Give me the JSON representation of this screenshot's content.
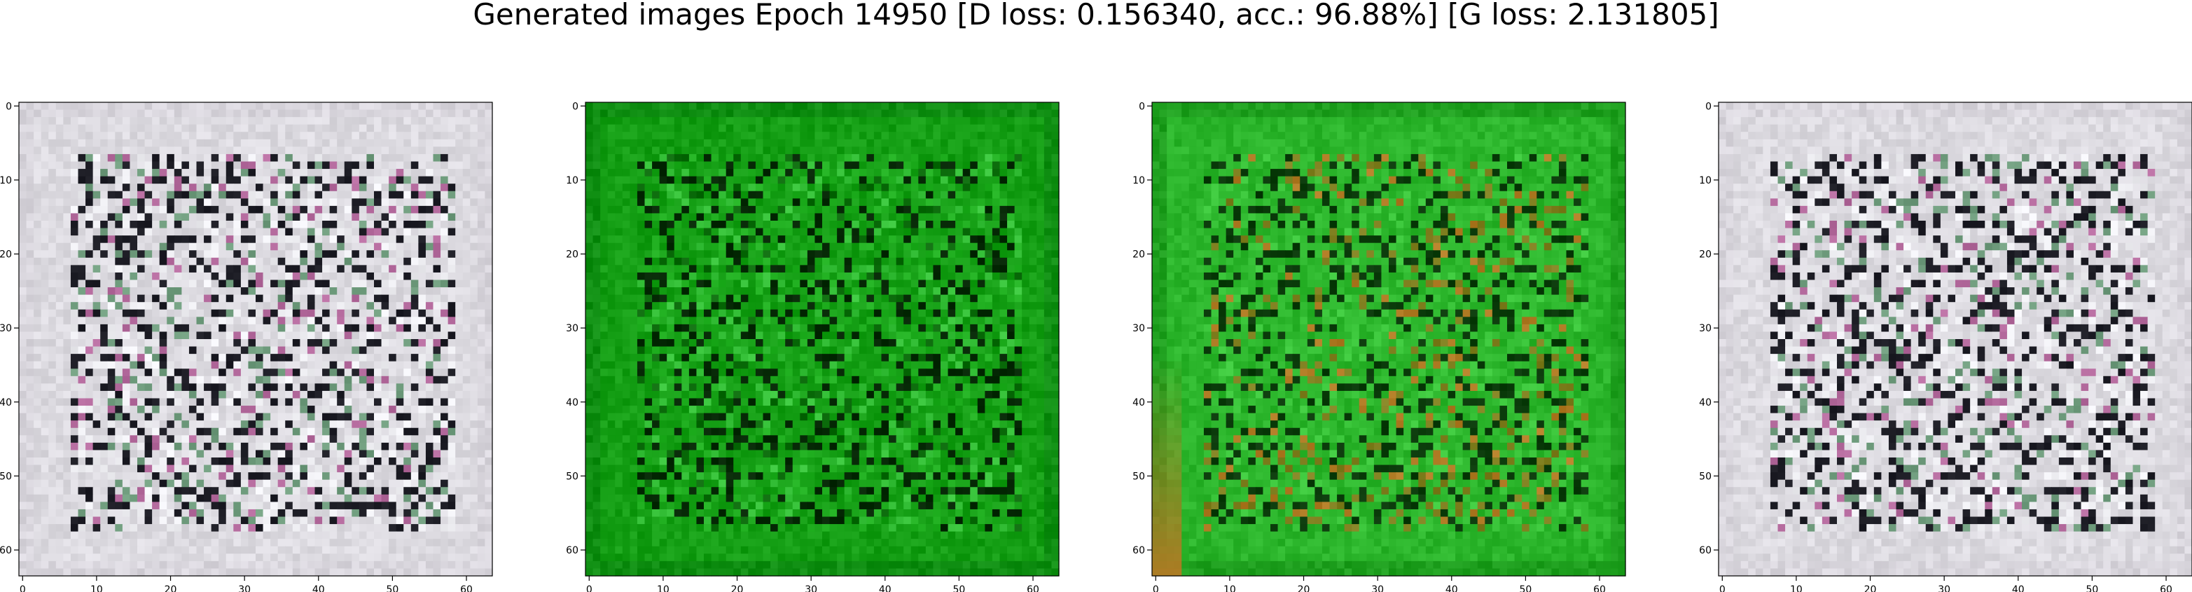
{
  "figure": {
    "suptitle": "Generated images Epoch 14950 [D loss: 0.156340, acc.: 96.88%] [G loss: 2.131805]"
  },
  "chart_data": [
    {
      "type": "heatmap",
      "panel": 1,
      "palette": "whitish",
      "xlim": [
        -0.5,
        63.5
      ],
      "ylim": [
        63.5,
        -0.5
      ],
      "xticks": [
        0,
        10,
        20,
        30,
        40,
        50,
        60
      ],
      "yticks": [
        0,
        10,
        20,
        30,
        40,
        50,
        60
      ],
      "base_color": "#dcdae0",
      "dominant_colors": [
        "#eeeef2",
        "#d9d6dd",
        "#1c1c24",
        "#6f9c7d",
        "#b46a9d",
        "#8fc7d1"
      ]
    },
    {
      "type": "heatmap",
      "panel": 2,
      "palette": "green",
      "xlim": [
        -0.5,
        63.5
      ],
      "ylim": [
        63.5,
        -0.5
      ],
      "xticks": [
        0,
        10,
        20,
        30,
        40,
        50,
        60
      ],
      "yticks": [
        0,
        10,
        20,
        30,
        40,
        50,
        60
      ],
      "base_color": "#149e14",
      "dominant_colors": [
        "#1fae1f",
        "#0f8e12",
        "#052805",
        "#37c23a",
        "#0a6a0a"
      ]
    },
    {
      "type": "heatmap",
      "panel": 3,
      "palette": "green-bright",
      "xlim": [
        -0.5,
        63.5
      ],
      "ylim": [
        63.5,
        -0.5
      ],
      "xticks": [
        0,
        10,
        20,
        30,
        40,
        50,
        60
      ],
      "yticks": [
        0,
        10,
        20,
        30,
        40,
        50,
        60
      ],
      "base_color": "#2bb52b",
      "dominant_colors": [
        "#3ac53a",
        "#1e9f1e",
        "#0a3a0a",
        "#7f7f1f",
        "#b07b24"
      ]
    },
    {
      "type": "heatmap",
      "panel": 4,
      "palette": "whitish",
      "xlim": [
        -0.5,
        63.5
      ],
      "ylim": [
        63.5,
        -0.5
      ],
      "xticks": [
        0,
        10,
        20,
        30,
        40,
        50,
        60
      ],
      "yticks": [
        0,
        10,
        20,
        30,
        40,
        50,
        60
      ],
      "base_color": "#dcdae0",
      "dominant_colors": [
        "#eeeef2",
        "#d9d6dd",
        "#1c1c24",
        "#6f9c7d",
        "#b46a9d",
        "#8fc7d1"
      ]
    }
  ]
}
